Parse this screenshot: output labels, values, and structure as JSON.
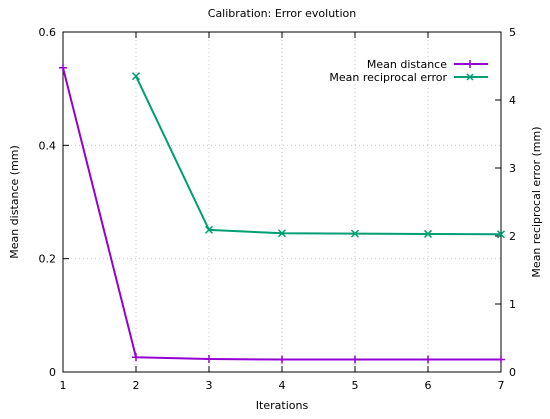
{
  "chart_data": {
    "type": "line",
    "title": "Calibration: Error evolution",
    "xlabel": "Iterations",
    "ylabel": "Mean distance (mm)",
    "y2label": "Mean reciprocal error (mm)",
    "x_ticks": [
      "1",
      "2",
      "3",
      "4",
      "5",
      "6",
      "7"
    ],
    "y_ticks": [
      "0",
      "0.2",
      "0.4",
      "0.6"
    ],
    "y2_ticks": [
      "0",
      "1",
      "2",
      "3",
      "4",
      "5"
    ],
    "xlim": [
      1,
      7
    ],
    "ylim": [
      0,
      0.6
    ],
    "y2lim": [
      0,
      5
    ],
    "grid": true,
    "legend_position": "top-right",
    "series": [
      {
        "name": "Mean distance",
        "axis": "left",
        "color": "#9400d3",
        "marker": "plus",
        "x": [
          1,
          2,
          3,
          4,
          5,
          6,
          7
        ],
        "y": [
          0.537,
          0.026,
          0.023,
          0.022,
          0.022,
          0.022,
          0.022
        ]
      },
      {
        "name": "Mean reciprocal error",
        "axis": "right",
        "color": "#009e73",
        "marker": "cross",
        "x": [
          2,
          3,
          4,
          5,
          6,
          7
        ],
        "y": [
          4.35,
          2.09,
          2.04,
          2.035,
          2.03,
          2.025
        ]
      }
    ]
  }
}
